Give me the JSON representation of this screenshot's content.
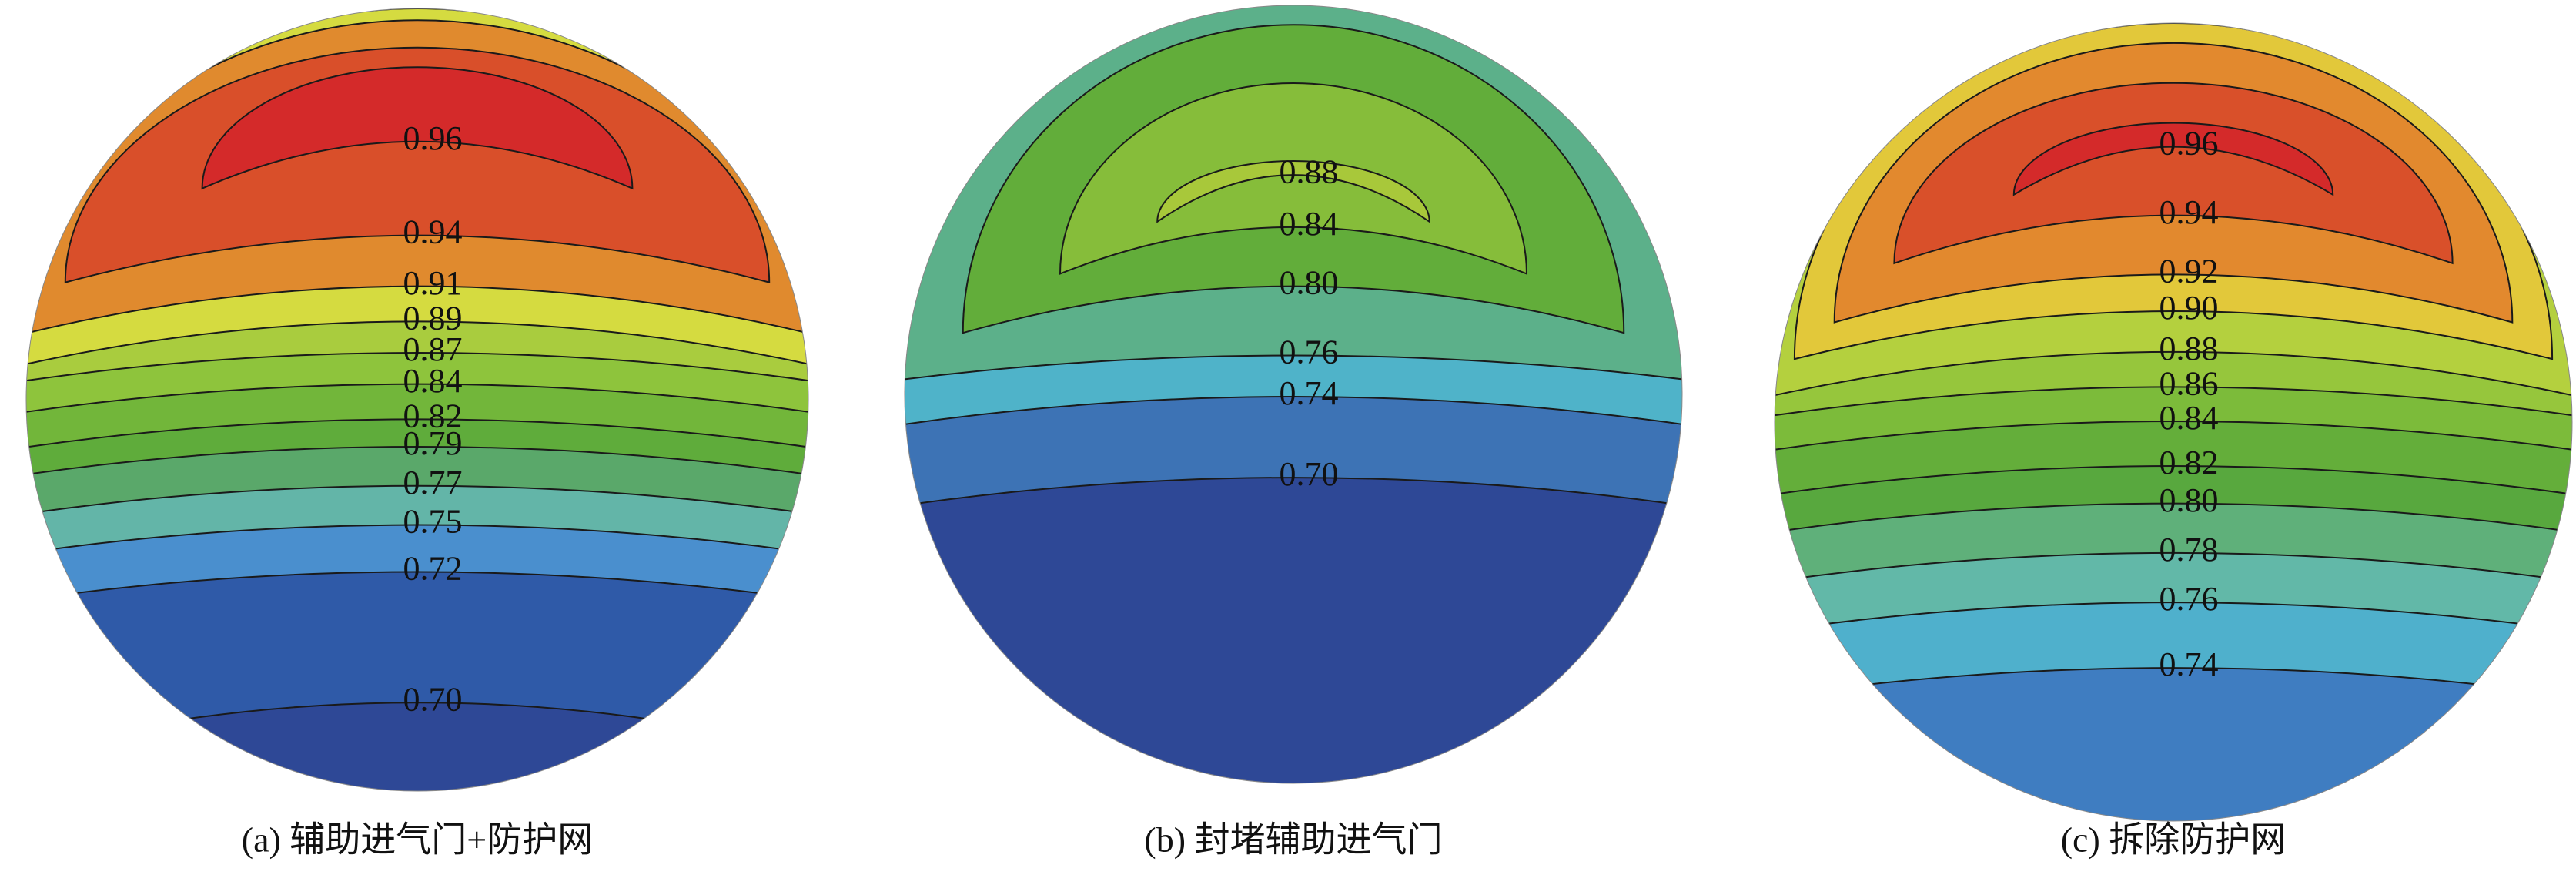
{
  "chart_data": [
    {
      "type": "contour",
      "title": "(a) 辅助进气门+防护网",
      "values": [
        0.96,
        0.94,
        0.91,
        0.89,
        0.87,
        0.84,
        0.82,
        0.79,
        0.77,
        0.75,
        0.72,
        0.7
      ],
      "value_labels": [
        "0.96",
        "0.94",
        "0.91",
        "0.89",
        "0.87",
        "0.84",
        "0.82",
        "0.79",
        "0.77",
        "0.75",
        "0.72",
        "0.70"
      ],
      "colors": [
        "#d42a2a",
        "#d94f2a",
        "#e08a2e",
        "#d5db40",
        "#a9cc3e",
        "#8ec43c",
        "#72b63a",
        "#5fac3b",
        "#5aa86a",
        "#63b5a8",
        "#4a8fce",
        "#2f5aa8"
      ],
      "bottom_color": "#2e4896"
    },
    {
      "type": "contour",
      "title": "(b) 封堵辅助进气门",
      "values": [
        0.88,
        0.84,
        0.8,
        0.76,
        0.74,
        0.7
      ],
      "value_labels": [
        "0.88",
        "0.84",
        "0.80",
        "0.76",
        "0.74",
        "0.70"
      ],
      "colors": [
        "#a8c83a",
        "#86bd3a",
        "#62ad3a",
        "#5cb08a",
        "#4fb3c9",
        "#3d73b5"
      ],
      "bottom_color": "#2e4896"
    },
    {
      "type": "contour",
      "title": "(c) 拆除防护网",
      "values": [
        0.96,
        0.94,
        0.92,
        0.9,
        0.88,
        0.86,
        0.84,
        0.82,
        0.8,
        0.78,
        0.76,
        0.74
      ],
      "value_labels": [
        "0.96",
        "0.94",
        "0.92",
        "0.90",
        "0.88",
        "0.86",
        "0.84",
        "0.82",
        "0.80",
        "0.78",
        "0.76",
        "0.74"
      ],
      "colors": [
        "#d42a2a",
        "#d9502a",
        "#e2892e",
        "#e2c83a",
        "#b4d03e",
        "#96c63c",
        "#7cbb3a",
        "#64ae3a",
        "#58a83e",
        "#5fb07a",
        "#62b8a8",
        "#4fb0cc"
      ],
      "bottom_color": "#3f7dc1"
    }
  ]
}
